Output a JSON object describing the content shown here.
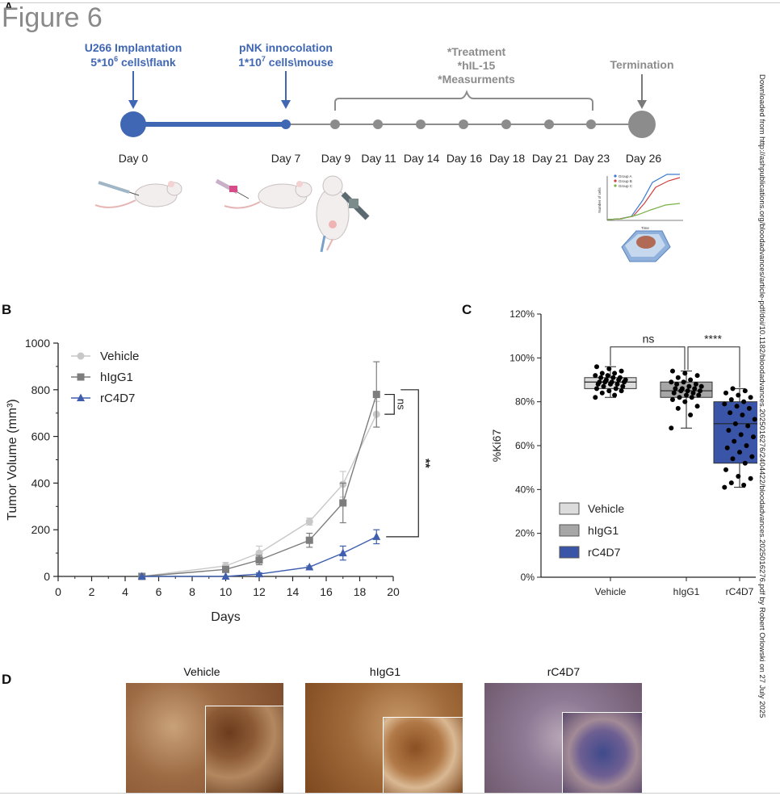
{
  "figure": {
    "corner_mark": "A",
    "title": "Figure 6",
    "side_note": "Downloaded from http://ashpublications.org/bloodadvances/article-pdf/doi/10.1182/bloodadvances.2025016276/2404422/bloodadvances.2025016276.pdf by Robert Orlowski on 27 July 2025"
  },
  "panel_a": {
    "implant_line1": "U266 Implantation",
    "implant_line2_base": "5*10",
    "implant_line2_sup": "6",
    "implant_line2_rest": " cells\\flank",
    "pnk_line1": "pNK innocolation",
    "pnk_line2_base": "1*10",
    "pnk_line2_sup": "7",
    "pnk_line2_rest": " cells\\mouse",
    "treatment_lines": [
      "*Treatment",
      "*hIL-15",
      "*Measurments"
    ],
    "termination": "Termination",
    "days": [
      "Day 0",
      "Day 7",
      "Day 9",
      "Day 11",
      "Day 14",
      "Day 16",
      "Day 18",
      "Day 21",
      "Day 23",
      "Day 26"
    ],
    "inset_legend": [
      "Group A",
      "Group B",
      "Group C"
    ],
    "inset_xlabel": "Time",
    "inset_ylabel": "Number of cells",
    "colors": {
      "blue": "#4067b4",
      "gray": "#8c8c8c",
      "dark_gray": "#7a7a7a"
    }
  },
  "panel_b": {
    "letter": "B",
    "chart_data": {
      "type": "line",
      "xlabel": "Days",
      "ylabel": "Tumor Volume (mm³)",
      "xlim": [
        0,
        20
      ],
      "ylim": [
        0,
        1000
      ],
      "xticks": [
        0,
        2,
        4,
        6,
        8,
        10,
        12,
        14,
        16,
        18,
        20
      ],
      "yticks": [
        0,
        200,
        400,
        600,
        800,
        1000
      ],
      "legend": "top-left",
      "series": [
        {
          "name": "Vehicle",
          "color": "#c8c8c8",
          "marker": "circle",
          "x": [
            5,
            10,
            12,
            15,
            17,
            19
          ],
          "y": [
            0,
            45,
            100,
            235,
            395,
            695
          ],
          "err": [
            0,
            15,
            30,
            15,
            55,
            55
          ]
        },
        {
          "name": "hIgG1",
          "color": "#7d7d7d",
          "marker": "square",
          "x": [
            5,
            10,
            12,
            15,
            17,
            19
          ],
          "y": [
            0,
            30,
            70,
            155,
            315,
            780
          ],
          "err": [
            0,
            10,
            20,
            30,
            85,
            140
          ]
        },
        {
          "name": "rC4D7",
          "color": "#3f5fae",
          "marker": "triangle",
          "x": [
            5,
            10,
            12,
            15,
            17,
            19
          ],
          "y": [
            0,
            0,
            10,
            40,
            100,
            170
          ],
          "err": [
            0,
            0,
            5,
            5,
            30,
            30
          ]
        }
      ],
      "annotations": [
        "ns",
        "**"
      ]
    }
  },
  "panel_c": {
    "letter": "C",
    "chart_data": {
      "type": "box",
      "ylabel": "%Ki67",
      "categories": [
        "Vehicle",
        "hIgG1",
        "rC4D7"
      ],
      "ylim": [
        0,
        120
      ],
      "yticks": [
        "0%",
        "20%",
        "40%",
        "60%",
        "80%",
        "100%",
        "120%"
      ],
      "legend": "bottom-left",
      "series": [
        {
          "name": "Vehicle",
          "color": "#dcdcdc",
          "min": 82,
          "q1": 86,
          "median": 89,
          "q3": 91,
          "max": 96,
          "points": [
            82,
            83,
            84,
            85,
            85,
            86,
            86,
            87,
            87,
            88,
            88,
            88,
            89,
            89,
            89,
            89,
            90,
            90,
            90,
            91,
            91,
            91,
            92,
            92,
            93,
            93,
            94,
            95,
            96
          ]
        },
        {
          "name": "hIgG1",
          "color": "#a6a6a6",
          "min": 68,
          "q1": 82,
          "median": 85,
          "q3": 89,
          "max": 94,
          "points": [
            68,
            74,
            77,
            78,
            80,
            81,
            82,
            82,
            83,
            83,
            84,
            84,
            85,
            85,
            85,
            86,
            86,
            86,
            87,
            87,
            88,
            88,
            89,
            89,
            90,
            91,
            92,
            93,
            94
          ]
        },
        {
          "name": "rC4D7",
          "color": "#3a55a8",
          "min": 41,
          "q1": 52,
          "median": 70,
          "q3": 80,
          "max": 86,
          "points": [
            41,
            42,
            43,
            45,
            46,
            49,
            52,
            54,
            55,
            57,
            59,
            60,
            62,
            64,
            65,
            67,
            69,
            70,
            72,
            74,
            75,
            77,
            78,
            79,
            80,
            81,
            82,
            83,
            84,
            85,
            86
          ]
        }
      ],
      "annotations": [
        "ns",
        "****"
      ]
    }
  },
  "panel_d": {
    "letter": "D",
    "labels": [
      "Vehicle",
      "hIgG1",
      "rC4D7"
    ]
  }
}
